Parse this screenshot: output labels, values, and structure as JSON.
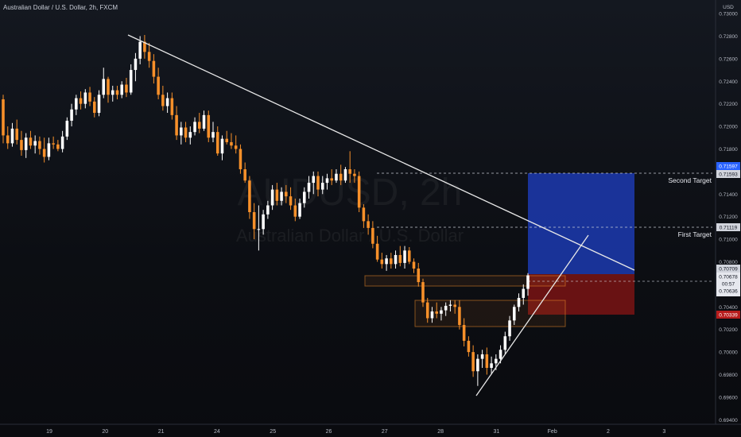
{
  "header": {
    "title": "Australian Dollar / U.S. Dollar, 2h, FXCM",
    "currency": "USD"
  },
  "watermark": {
    "symbol": "AUDUSD, 2h",
    "name": "Australian Dollar / U.S. Dollar"
  },
  "colors": {
    "background": "#0d0f14",
    "up_candle": "#ffffff",
    "down_candle": "#f7902a",
    "trend_line": "#e8e8e8",
    "target_zone": "#1c3ab0",
    "stop_zone": "#7a1414",
    "price_tag_blue": "#2962ff",
    "price_tag_red": "#b71c1c",
    "price_tag_neutral": "#d1d4dc",
    "supply_box": "#f7902a"
  },
  "chart_data": {
    "type": "candlestick",
    "title": "Australian Dollar / U.S. Dollar, 2h, FXCM",
    "y_axis_label": "USD",
    "ylim": [
      0.6936,
      0.7312
    ],
    "y_ticks": [
      "0.73000",
      "0.72800",
      "0.72600",
      "0.72400",
      "0.72200",
      "0.72000",
      "0.71800",
      "0.71600",
      "0.71400",
      "0.71200",
      "0.71000",
      "0.70800",
      "0.70600",
      "0.70400",
      "0.70200",
      "0.70000",
      "0.69800",
      "0.69600",
      "0.69400"
    ],
    "x_ticks": [
      "19",
      "20",
      "21",
      "24",
      "25",
      "26",
      "27",
      "28",
      "31",
      "Feb",
      "2",
      "3"
    ],
    "price_labels": {
      "second_target": "0.71597",
      "second_target_b": "0.71593",
      "first_target": "0.71119",
      "entry": "0.70709",
      "last_price": "0.70678",
      "countdown": "00:57",
      "last_low": "0.70636",
      "stop": "0.70339"
    },
    "annotations": {
      "second_target": "Second Target",
      "first_target": "First Target"
    },
    "candles": [
      [
        0.7224,
        0.7228,
        0.7185,
        0.7192
      ],
      [
        0.7192,
        0.72,
        0.718,
        0.7185
      ],
      [
        0.7185,
        0.7203,
        0.7182,
        0.7198
      ],
      [
        0.7198,
        0.7206,
        0.7184,
        0.7188
      ],
      [
        0.7188,
        0.7196,
        0.7174,
        0.7179
      ],
      [
        0.7179,
        0.7194,
        0.7172,
        0.719
      ],
      [
        0.719,
        0.7196,
        0.718,
        0.7183
      ],
      [
        0.7183,
        0.7192,
        0.7176,
        0.7187
      ],
      [
        0.7187,
        0.7191,
        0.7175,
        0.718
      ],
      [
        0.718,
        0.719,
        0.7168,
        0.7173
      ],
      [
        0.7173,
        0.719,
        0.717,
        0.7185
      ],
      [
        0.7185,
        0.7191,
        0.718,
        0.7184
      ],
      [
        0.7184,
        0.7188,
        0.7178,
        0.718
      ],
      [
        0.718,
        0.7196,
        0.7177,
        0.7191
      ],
      [
        0.7191,
        0.7208,
        0.7188,
        0.7205
      ],
      [
        0.7205,
        0.722,
        0.72,
        0.7215
      ],
      [
        0.7215,
        0.7228,
        0.721,
        0.7225
      ],
      [
        0.7225,
        0.7231,
        0.7215,
        0.722
      ],
      [
        0.722,
        0.7233,
        0.7216,
        0.723
      ],
      [
        0.723,
        0.7235,
        0.7218,
        0.7222
      ],
      [
        0.7222,
        0.7226,
        0.7208,
        0.7212
      ],
      [
        0.7212,
        0.7232,
        0.7209,
        0.7228
      ],
      [
        0.7228,
        0.7252,
        0.7225,
        0.7242
      ],
      [
        0.7242,
        0.7244,
        0.7221,
        0.7228
      ],
      [
        0.7228,
        0.7236,
        0.7222,
        0.7232
      ],
      [
        0.7232,
        0.7236,
        0.7224,
        0.7228
      ],
      [
        0.7228,
        0.724,
        0.7225,
        0.7237
      ],
      [
        0.7237,
        0.7243,
        0.7226,
        0.723
      ],
      [
        0.723,
        0.7255,
        0.7228,
        0.725
      ],
      [
        0.725,
        0.7265,
        0.724,
        0.726
      ],
      [
        0.726,
        0.728,
        0.7255,
        0.7275
      ],
      [
        0.7275,
        0.7281,
        0.726,
        0.7266
      ],
      [
        0.7266,
        0.7274,
        0.7252,
        0.7258
      ],
      [
        0.7258,
        0.7264,
        0.7238,
        0.7244
      ],
      [
        0.7244,
        0.7252,
        0.7224,
        0.7228
      ],
      [
        0.7228,
        0.7236,
        0.7214,
        0.7218
      ],
      [
        0.7218,
        0.723,
        0.7212,
        0.7225
      ],
      [
        0.7225,
        0.723,
        0.7206,
        0.721
      ],
      [
        0.721,
        0.7218,
        0.7188,
        0.7192
      ],
      [
        0.7192,
        0.7204,
        0.7184,
        0.7199
      ],
      [
        0.7199,
        0.7204,
        0.7186,
        0.719
      ],
      [
        0.719,
        0.72,
        0.7184,
        0.7195
      ],
      [
        0.7195,
        0.7208,
        0.7192,
        0.7204
      ],
      [
        0.7204,
        0.7212,
        0.7194,
        0.7198
      ],
      [
        0.7198,
        0.7214,
        0.7196,
        0.721
      ],
      [
        0.721,
        0.7214,
        0.7186,
        0.719
      ],
      [
        0.719,
        0.7204,
        0.7186,
        0.7195
      ],
      [
        0.7195,
        0.72,
        0.7174,
        0.7176
      ],
      [
        0.7176,
        0.7192,
        0.717,
        0.7189
      ],
      [
        0.7189,
        0.7196,
        0.7184,
        0.7186
      ],
      [
        0.7186,
        0.7194,
        0.718,
        0.7183
      ],
      [
        0.7183,
        0.7192,
        0.7176,
        0.718
      ],
      [
        0.718,
        0.7184,
        0.7158,
        0.7162
      ],
      [
        0.7162,
        0.7168,
        0.715,
        0.7152
      ],
      [
        0.7152,
        0.7156,
        0.7118,
        0.7124
      ],
      [
        0.7124,
        0.7132,
        0.71,
        0.7109
      ],
      [
        0.7109,
        0.713,
        0.709,
        0.7109
      ],
      [
        0.7109,
        0.7126,
        0.7104,
        0.7122
      ],
      [
        0.7122,
        0.7134,
        0.7118,
        0.713
      ],
      [
        0.713,
        0.7148,
        0.7126,
        0.7144
      ],
      [
        0.7144,
        0.715,
        0.713,
        0.7134
      ],
      [
        0.7134,
        0.7146,
        0.713,
        0.7142
      ],
      [
        0.7142,
        0.7148,
        0.7132,
        0.7138
      ],
      [
        0.7138,
        0.7146,
        0.7126,
        0.713
      ],
      [
        0.713,
        0.7136,
        0.7116,
        0.712
      ],
      [
        0.712,
        0.7136,
        0.7118,
        0.7132
      ],
      [
        0.7132,
        0.7146,
        0.7128,
        0.7142
      ],
      [
        0.7142,
        0.7156,
        0.7136,
        0.715
      ],
      [
        0.715,
        0.716,
        0.714,
        0.7156
      ],
      [
        0.7156,
        0.716,
        0.7138,
        0.7144
      ],
      [
        0.7144,
        0.7156,
        0.714,
        0.715
      ],
      [
        0.715,
        0.7158,
        0.7144,
        0.7154
      ],
      [
        0.7154,
        0.7162,
        0.7148,
        0.7152
      ],
      [
        0.7152,
        0.7162,
        0.715,
        0.7158
      ],
      [
        0.7158,
        0.7166,
        0.7148,
        0.7152
      ],
      [
        0.7152,
        0.7164,
        0.715,
        0.7162
      ],
      [
        0.7162,
        0.7178,
        0.715,
        0.7158
      ],
      [
        0.7158,
        0.7162,
        0.715,
        0.7156
      ],
      [
        0.7156,
        0.716,
        0.7124,
        0.7128
      ],
      [
        0.7128,
        0.7131,
        0.711,
        0.7116
      ],
      [
        0.7116,
        0.7122,
        0.7104,
        0.711
      ],
      [
        0.711,
        0.7116,
        0.7092,
        0.7096
      ],
      [
        0.7096,
        0.7103,
        0.708,
        0.7082
      ],
      [
        0.7082,
        0.7088,
        0.7074,
        0.7078
      ],
      [
        0.7078,
        0.7086,
        0.7072,
        0.7083
      ],
      [
        0.7083,
        0.7088,
        0.7074,
        0.7078
      ],
      [
        0.7078,
        0.709,
        0.7074,
        0.7086
      ],
      [
        0.7086,
        0.7094,
        0.7076,
        0.7079
      ],
      [
        0.7079,
        0.7094,
        0.7074,
        0.709
      ],
      [
        0.709,
        0.7093,
        0.7078,
        0.708
      ],
      [
        0.708,
        0.7083,
        0.707,
        0.7074
      ],
      [
        0.7074,
        0.7079,
        0.7058,
        0.7062
      ],
      [
        0.7062,
        0.7065,
        0.704,
        0.7044
      ],
      [
        0.7044,
        0.7048,
        0.7026,
        0.703
      ],
      [
        0.703,
        0.704,
        0.7026,
        0.7036
      ],
      [
        0.7036,
        0.7044,
        0.703,
        0.7034
      ],
      [
        0.7034,
        0.704,
        0.7028,
        0.7037
      ],
      [
        0.7037,
        0.7044,
        0.7032,
        0.7041
      ],
      [
        0.7041,
        0.7046,
        0.7036,
        0.7042
      ],
      [
        0.7042,
        0.7046,
        0.7034,
        0.704
      ],
      [
        0.704,
        0.7046,
        0.702,
        0.7024
      ],
      [
        0.7024,
        0.703,
        0.7005,
        0.701
      ],
      [
        0.701,
        0.7014,
        0.6996,
        0.7
      ],
      [
        0.7,
        0.7006,
        0.6978,
        0.6983
      ],
      [
        0.6983,
        0.6998,
        0.697,
        0.6994
      ],
      [
        0.6994,
        0.7002,
        0.6986,
        0.6998
      ],
      [
        0.6998,
        0.7004,
        0.698,
        0.6986
      ],
      [
        0.6986,
        0.6996,
        0.698,
        0.699
      ],
      [
        0.699,
        0.6998,
        0.6984,
        0.6994
      ],
      [
        0.6994,
        0.7006,
        0.699,
        0.7002
      ],
      [
        0.7002,
        0.7018,
        0.6998,
        0.7014
      ],
      [
        0.7014,
        0.7032,
        0.701,
        0.7028
      ],
      [
        0.7028,
        0.7042,
        0.7024,
        0.704
      ],
      [
        0.704,
        0.7052,
        0.7036,
        0.7048
      ],
      [
        0.7048,
        0.706,
        0.7042,
        0.7056
      ],
      [
        0.7056,
        0.707,
        0.705,
        0.7068
      ]
    ]
  }
}
